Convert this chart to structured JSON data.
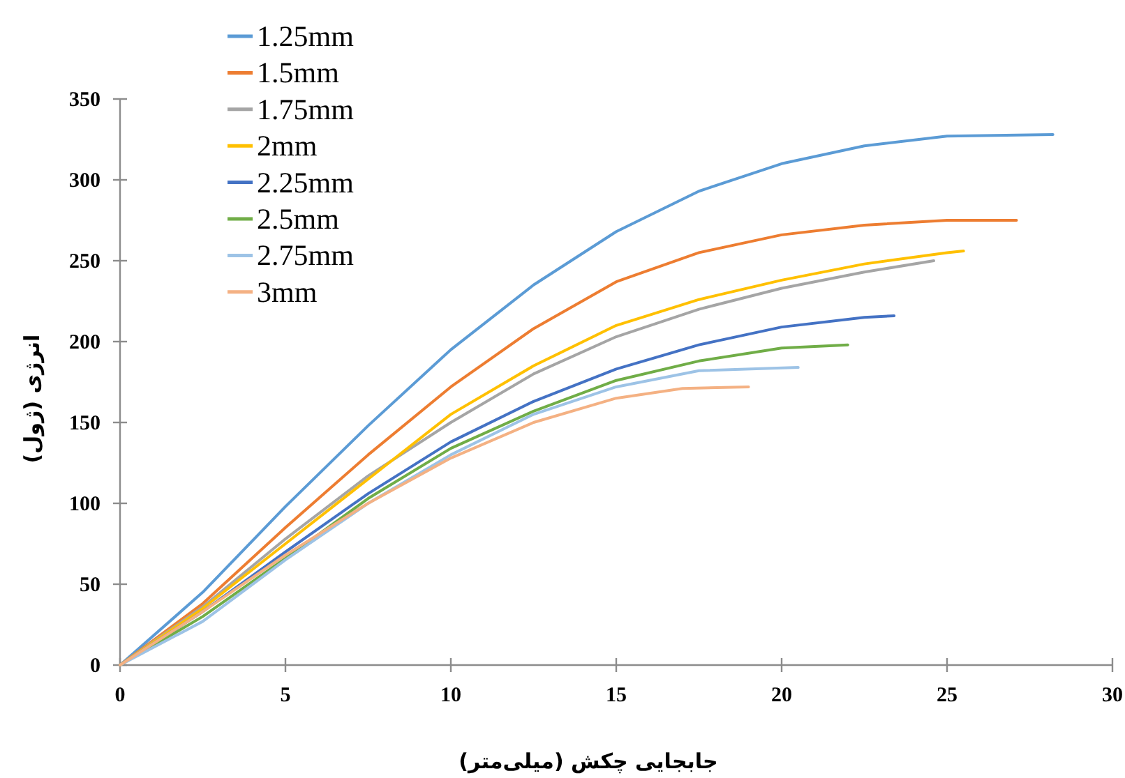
{
  "chart_data": {
    "type": "line",
    "xlabel": "جابجایی چکش (میلی‌متر)",
    "ylabel": "انرژی (ژول)",
    "xlim": [
      0,
      30
    ],
    "ylim": [
      0,
      350
    ],
    "xticks": [
      0,
      5,
      10,
      15,
      20,
      25,
      30
    ],
    "yticks": [
      0,
      50,
      100,
      150,
      200,
      250,
      300,
      350
    ],
    "grid": false,
    "legend": "top left",
    "marker": "none",
    "line_style": "solid",
    "series": [
      {
        "name": "1.25mm",
        "color": "#5b9bd5",
        "x": [
          0,
          2.5,
          5,
          7.5,
          10,
          12.5,
          15,
          17.5,
          20,
          22.5,
          25,
          28.2
        ],
        "values": [
          0,
          45,
          98,
          148,
          195,
          235,
          268,
          293,
          310,
          321,
          327,
          328
        ]
      },
      {
        "name": "1.5mm",
        "color": "#ed7d31",
        "x": [
          0,
          2.5,
          5,
          7.5,
          10,
          12.5,
          15,
          17.5,
          20,
          22.5,
          25,
          27.1
        ],
        "values": [
          0,
          38,
          85,
          130,
          172,
          208,
          237,
          255,
          266,
          272,
          275,
          275
        ]
      },
      {
        "name": "1.75mm",
        "color": "#a5a5a5",
        "x": [
          0,
          2.5,
          5,
          7.5,
          10,
          12.5,
          15,
          17.5,
          20,
          22.5,
          24.6
        ],
        "values": [
          0,
          36,
          78,
          117,
          150,
          180,
          203,
          220,
          233,
          243,
          250
        ]
      },
      {
        "name": "2mm",
        "color": "#ffc000",
        "x": [
          0,
          2.5,
          5,
          7.5,
          10,
          12.5,
          15,
          17.5,
          20,
          22.5,
          25,
          25.5
        ],
        "values": [
          0,
          35,
          75,
          115,
          155,
          185,
          210,
          226,
          238,
          248,
          255,
          256
        ]
      },
      {
        "name": "2.25mm",
        "color": "#4472c4",
        "x": [
          0,
          2.5,
          5,
          7.5,
          10,
          12.5,
          15,
          17.5,
          20,
          22.5,
          23.4
        ],
        "values": [
          0,
          33,
          70,
          106,
          138,
          163,
          183,
          198,
          209,
          215,
          216
        ]
      },
      {
        "name": "2.5mm",
        "color": "#70ad47",
        "x": [
          0,
          2.5,
          5,
          7.5,
          10,
          12.5,
          15,
          17.5,
          20,
          22
        ],
        "values": [
          0,
          30,
          66,
          103,
          134,
          157,
          176,
          188,
          196,
          198
        ]
      },
      {
        "name": "2.75mm",
        "color": "#9dc3e6",
        "x": [
          0,
          2.5,
          5,
          7.5,
          10,
          12.5,
          15,
          17.5,
          20.5
        ],
        "values": [
          0,
          27,
          65,
          100,
          130,
          155,
          172,
          182,
          184
        ]
      },
      {
        "name": "3mm",
        "color": "#f4b183",
        "x": [
          0,
          2.5,
          5,
          7.5,
          10,
          12.5,
          15,
          17,
          19
        ],
        "values": [
          0,
          33,
          68,
          100,
          128,
          150,
          165,
          171,
          172
        ]
      }
    ]
  }
}
